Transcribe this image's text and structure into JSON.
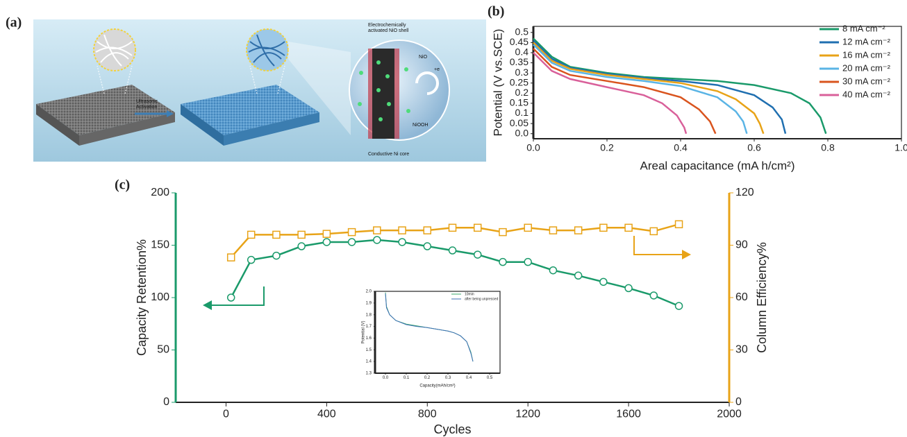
{
  "panel_labels": [
    "(a)",
    "(b)",
    "(c)"
  ],
  "illustration": {
    "activation_label": [
      "Ultrasonic",
      "Activation"
    ],
    "shell_label": [
      "Electrochemically",
      "activated NiO shell"
    ],
    "nio_label": "NiO",
    "niooh_label": "NiOOH",
    "electron_label": "+e",
    "core_label": "Conductive Ni core"
  },
  "chart_data": [
    {
      "type": "line",
      "xlabel": "Areal capacitance (mA h/cm²)",
      "ylabel": "Potential (V vs.SCE)",
      "xlim": [
        0,
        1
      ],
      "ylim": [
        -0.025,
        0.53
      ],
      "xticks": [
        {
          "value": 0,
          "label": "0.0"
        },
        0.2,
        0.4,
        0.6,
        0.8,
        {
          "value": 1,
          "label": "1.0"
        }
      ],
      "yticks": [
        {
          "value": 0,
          "label": "0.0"
        },
        0.05,
        0.1,
        0.15,
        0.2,
        0.25,
        0.3,
        0.35,
        0.4,
        0.45,
        0.5
      ],
      "legend": "upper right",
      "series": [
        {
          "name": "8 mA cm⁻²",
          "color": "#1a9a6a",
          "x": [
            0,
            0.05,
            0.1,
            0.2,
            0.3,
            0.4,
            0.5,
            0.6,
            0.7,
            0.75,
            0.78,
            0.795
          ],
          "values": [
            0.47,
            0.38,
            0.33,
            0.3,
            0.28,
            0.27,
            0.26,
            0.24,
            0.2,
            0.15,
            0.08,
            0.0
          ]
        },
        {
          "name": "12 mA cm⁻²",
          "color": "#1f6fb0",
          "x": [
            0,
            0.05,
            0.1,
            0.2,
            0.3,
            0.4,
            0.5,
            0.6,
            0.65,
            0.675,
            0.685
          ],
          "values": [
            0.46,
            0.37,
            0.325,
            0.295,
            0.275,
            0.26,
            0.24,
            0.19,
            0.13,
            0.07,
            0.0
          ]
        },
        {
          "name": "16 mA cm⁻²",
          "color": "#e8a317",
          "x": [
            0,
            0.05,
            0.1,
            0.2,
            0.3,
            0.4,
            0.5,
            0.55,
            0.6,
            0.615,
            0.625
          ],
          "values": [
            0.45,
            0.36,
            0.32,
            0.29,
            0.27,
            0.25,
            0.21,
            0.17,
            0.1,
            0.05,
            0.0
          ]
        },
        {
          "name": "20 mA cm⁻²",
          "color": "#5ab4e5",
          "x": [
            0,
            0.05,
            0.1,
            0.2,
            0.3,
            0.4,
            0.5,
            0.55,
            0.57,
            0.58
          ],
          "values": [
            0.44,
            0.35,
            0.31,
            0.28,
            0.26,
            0.235,
            0.18,
            0.11,
            0.06,
            0.0
          ]
        },
        {
          "name": "30 mA cm⁻²",
          "color": "#d9541e",
          "x": [
            0,
            0.05,
            0.1,
            0.2,
            0.3,
            0.4,
            0.45,
            0.48,
            0.495
          ],
          "values": [
            0.42,
            0.33,
            0.29,
            0.26,
            0.23,
            0.18,
            0.12,
            0.06,
            0.0
          ]
        },
        {
          "name": "40 mA cm⁻²",
          "color": "#d9609a",
          "x": [
            0,
            0.05,
            0.1,
            0.2,
            0.3,
            0.35,
            0.39,
            0.41,
            0.415
          ],
          "values": [
            0.4,
            0.31,
            0.27,
            0.23,
            0.19,
            0.15,
            0.09,
            0.03,
            0.0
          ]
        }
      ]
    },
    {
      "type": "line",
      "xlabel": "Cycles",
      "ylabel": "Capacity Retention%",
      "y2label": "Column Efficiency%",
      "y_axis_color": "#1a9a6a",
      "y2_axis_color": "#e8a317",
      "xlim": [
        -200,
        2000
      ],
      "ylim": [
        0,
        200
      ],
      "y2lim": [
        0,
        120
      ],
      "xticks": [
        0,
        400,
        800,
        1200,
        1600,
        2000
      ],
      "yticks": [
        0,
        50,
        100,
        150,
        200
      ],
      "y2ticks": [
        0,
        30,
        60,
        90,
        120
      ],
      "series": [
        {
          "marker": "circle",
          "color": "#1a9a6a",
          "x": [
            20,
            100,
            200,
            300,
            400,
            500,
            600,
            700,
            800,
            900,
            1000,
            1100,
            1200,
            1300,
            1400,
            1500,
            1600,
            1700,
            1800
          ],
          "values": [
            100,
            136,
            140,
            149,
            153,
            153,
            155,
            153,
            149,
            145,
            141,
            134,
            134,
            126,
            121,
            115,
            109,
            102,
            92
          ]
        },
        {
          "marker": "square",
          "axis": "y2",
          "color": "#e8a317",
          "x": [
            20,
            100,
            200,
            300,
            400,
            500,
            600,
            700,
            800,
            900,
            1000,
            1100,
            1200,
            1300,
            1400,
            1500,
            1600,
            1700,
            1800
          ],
          "values": [
            83,
            96,
            96,
            96,
            96.5,
            97.5,
            98.5,
            98.5,
            98.5,
            100,
            100,
            97.5,
            100,
            98.5,
            98.5,
            100,
            100,
            98,
            102
          ]
        }
      ]
    },
    {
      "type": "line",
      "xlabel": "Capacity(mAh/cm²)",
      "ylabel": "Potential (V)",
      "xlim": [
        -0.05,
        0.55
      ],
      "ylim": [
        1.3,
        2.0
      ],
      "xticks": [
        {
          "value": 0,
          "label": "0.0"
        },
        0.1,
        0.2,
        0.3,
        0.4,
        0.5
      ],
      "yticks": [
        1.3,
        1.4,
        1.5,
        1.6,
        1.7,
        1.8,
        1.9,
        {
          "value": 2,
          "label": "2.0"
        }
      ],
      "legend": "upper right",
      "series": [
        {
          "name": "10min",
          "color": "#3aa86b",
          "x": [
            0,
            0.005,
            0.02,
            0.05,
            0.1,
            0.15,
            0.2,
            0.25,
            0.3,
            0.33,
            0.36,
            0.39,
            0.41,
            0.42
          ],
          "values": [
            1.99,
            1.87,
            1.8,
            1.75,
            1.72,
            1.705,
            1.69,
            1.675,
            1.66,
            1.645,
            1.62,
            1.57,
            1.48,
            1.4
          ]
        },
        {
          "name": "after being unpressed",
          "color": "#3d6fb6",
          "x": [
            0,
            0.005,
            0.02,
            0.05,
            0.1,
            0.15,
            0.2,
            0.25,
            0.3,
            0.33,
            0.36,
            0.39,
            0.41,
            0.42
          ],
          "values": [
            1.98,
            1.86,
            1.8,
            1.75,
            1.715,
            1.7,
            1.69,
            1.675,
            1.66,
            1.645,
            1.62,
            1.57,
            1.47,
            1.4
          ]
        }
      ]
    }
  ]
}
